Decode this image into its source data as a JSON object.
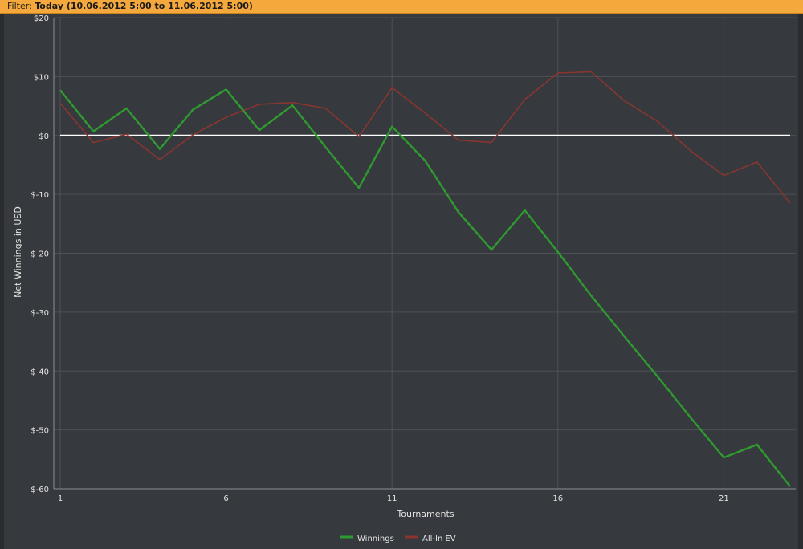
{
  "filter": {
    "prefix": "Filter: ",
    "value": "Today (10.06.2012 5:00 to 11.06.2012 5:00)"
  },
  "colors": {
    "background": "#36393d",
    "grid": "#4e5257",
    "zero_line": "#ffffff",
    "winnings": "#2f9a2f",
    "allin_ev": "#8a3530",
    "filter_bar": "#f5a93c"
  },
  "chart_data": {
    "type": "line",
    "xlabel": "Tournaments",
    "ylabel": "Net Winnings in USD",
    "xlim": [
      1,
      23
    ],
    "ylim": [
      -60,
      20
    ],
    "x_ticks": [
      1,
      6,
      11,
      16,
      21
    ],
    "y_ticks": [
      20,
      10,
      0,
      -10,
      -20,
      -30,
      -40,
      -50,
      -60
    ],
    "y_tick_labels": [
      "$20",
      "$10",
      "$0",
      "$-10",
      "$-20",
      "$-30",
      "$-40",
      "$-50",
      "$-60"
    ],
    "grid": true,
    "zero_line": true,
    "legend_position": "bottom-center",
    "x": [
      1,
      2,
      3,
      4,
      5,
      6,
      7,
      8,
      9,
      10,
      11,
      12,
      13,
      14,
      15,
      16,
      17,
      18,
      19,
      20,
      21,
      22,
      23
    ],
    "series": [
      {
        "name": "Winnings",
        "color": "#2f9a2f",
        "values": [
          7.7,
          0.7,
          4.6,
          -2.3,
          4.4,
          7.8,
          0.9,
          5.1,
          -2,
          -8.9,
          1.5,
          -4.3,
          -13,
          -19.4,
          -12.7,
          -19.8,
          -27.2,
          -34.1,
          -40.9,
          -47.9,
          -54.7,
          -52.5,
          -59.6
        ]
      },
      {
        "name": "All-In EV",
        "color": "#8a3530",
        "values": [
          5.5,
          -1.2,
          0.2,
          -4.1,
          0.1,
          3.1,
          5.3,
          5.6,
          4.6,
          -0.2,
          8.1,
          3.8,
          -0.8,
          -1.2,
          6.1,
          10.6,
          10.8,
          5.9,
          2.4,
          -2.6,
          -6.8,
          -4.5,
          -11.5
        ]
      }
    ]
  }
}
